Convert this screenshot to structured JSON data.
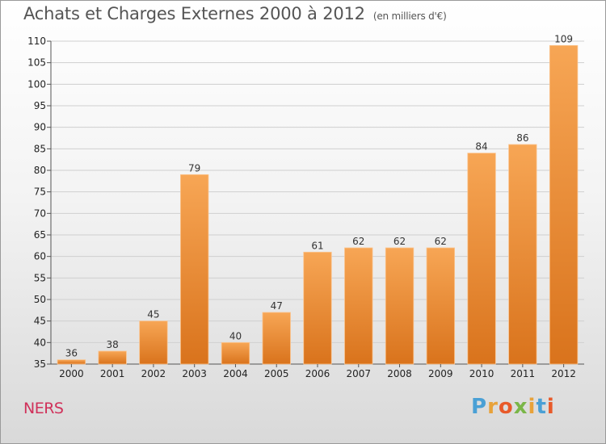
{
  "title": "Achats et Charges Externes 2000 à 2012",
  "subtitle": "(en milliers d'€)",
  "commune": "NERS",
  "logo": {
    "text": "Proxiti",
    "colors": [
      "#4aa0d5",
      "#e8a23a",
      "#e85a2a",
      "#7ab648",
      "#e8a23a",
      "#4aa0d5",
      "#e85a2a"
    ]
  },
  "chart_data": {
    "type": "bar",
    "categories": [
      "2000",
      "2001",
      "2002",
      "2003",
      "2004",
      "2005",
      "2006",
      "2007",
      "2008",
      "2009",
      "2010",
      "2011",
      "2012"
    ],
    "values": [
      36,
      38,
      45,
      79,
      40,
      47,
      61,
      62,
      62,
      62,
      84,
      86,
      109
    ],
    "ylim": [
      35,
      110
    ],
    "yticks": [
      35,
      40,
      45,
      50,
      55,
      60,
      65,
      70,
      75,
      80,
      85,
      90,
      95,
      100,
      105,
      110
    ],
    "grid": true,
    "bar_color": "#f0902e"
  }
}
